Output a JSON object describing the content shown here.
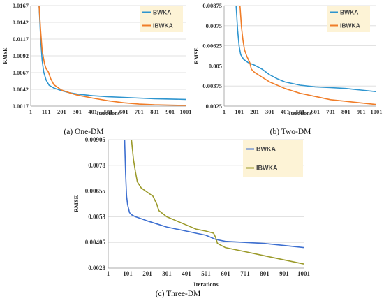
{
  "colors": {
    "bwka": "#2e95cf",
    "ibwka": "#f07d28",
    "ibwka_c": "#9b9a2a",
    "bwka_c": "#3d6fd0",
    "legend_bg": "#fdf3d6",
    "grid": "#d9d9d9"
  },
  "chart_data": [
    {
      "type": "line",
      "caption": "(a) One-DM",
      "xlabel": "Iterations",
      "ylabel": "RMSE",
      "xlim": [
        1,
        1001
      ],
      "ylim": [
        0.0017,
        0.0167
      ],
      "x_ticks": [
        "1",
        "101",
        "201",
        "301",
        "401",
        "501",
        "601",
        "701",
        "801",
        "901",
        "1001"
      ],
      "y_ticks": [
        "0.0167",
        "0.0142",
        "0.0117",
        "0.0092",
        "0.0067",
        "0.0042",
        "0.0017"
      ],
      "legend": {
        "placement": "top-right",
        "entries": [
          "BWKA",
          "IBWKA"
        ]
      },
      "grid": true,
      "series": [
        {
          "name": "BWKA",
          "color": "#2e95cf",
          "x": [
            55,
            65,
            75,
            85,
            100,
            120,
            150,
            200,
            250,
            300,
            400,
            500,
            600,
            700,
            800,
            900,
            1001
          ],
          "y": [
            0.0167,
            0.0118,
            0.0085,
            0.0068,
            0.0056,
            0.0048,
            0.0044,
            0.004,
            0.0037,
            0.0035,
            0.00325,
            0.0031,
            0.003,
            0.0029,
            0.0028,
            0.00275,
            0.0027
          ]
        },
        {
          "name": "IBWKA",
          "color": "#f07d28",
          "x": [
            55,
            65,
            75,
            90,
            100,
            115,
            130,
            150,
            200,
            250,
            300,
            400,
            500,
            600,
            700,
            800,
            900,
            1001
          ],
          "y": [
            0.0167,
            0.013,
            0.01,
            0.008,
            0.0073,
            0.0068,
            0.0058,
            0.0049,
            0.0041,
            0.0037,
            0.00335,
            0.0029,
            0.0025,
            0.0022,
            0.002,
            0.0019,
            0.00185,
            0.0018
          ]
        }
      ]
    },
    {
      "type": "line",
      "caption": "(b) Two-DM",
      "xlabel": "Iterations",
      "ylabel": "RMSE",
      "xlim": [
        1,
        1001
      ],
      "ylim": [
        0.0025,
        0.00875
      ],
      "x_ticks": [
        "1",
        "101",
        "201",
        "301",
        "401",
        "501",
        "601",
        "701",
        "801",
        "901",
        "1001"
      ],
      "y_ticks": [
        "0.00875",
        "0.0075",
        "0.00625",
        "0.005",
        "0.00375",
        "0.0025"
      ],
      "legend": {
        "placement": "top-right",
        "entries": [
          "BWKA",
          "IBWKA"
        ]
      },
      "grid": true,
      "series": [
        {
          "name": "BWKA",
          "color": "#2e95cf",
          "x": [
            80,
            90,
            100,
            110,
            130,
            160,
            200,
            250,
            300,
            350,
            400,
            500,
            600,
            700,
            800,
            900,
            1001
          ],
          "y": [
            0.00875,
            0.0072,
            0.0062,
            0.0057,
            0.0054,
            0.0052,
            0.00505,
            0.0048,
            0.00445,
            0.0042,
            0.004,
            0.0038,
            0.0037,
            0.00365,
            0.0036,
            0.0035,
            0.0034
          ]
        },
        {
          "name": "IBWKA",
          "color": "#f07d28",
          "x": [
            105,
            115,
            125,
            135,
            150,
            170,
            180,
            200,
            250,
            300,
            400,
            500,
            600,
            700,
            800,
            900,
            1001
          ],
          "y": [
            0.00875,
            0.0074,
            0.0066,
            0.006,
            0.0056,
            0.0052,
            0.0048,
            0.0046,
            0.0043,
            0.004,
            0.0036,
            0.0033,
            0.0031,
            0.0029,
            0.0028,
            0.0027,
            0.0026
          ]
        }
      ]
    },
    {
      "type": "line",
      "caption": "(c) Three-DM",
      "xlabel": "Iterations",
      "ylabel": "RMSE",
      "xlim": [
        1,
        1001
      ],
      "ylim": [
        0.0028,
        0.00905
      ],
      "x_ticks": [
        "1",
        "101",
        "201",
        "301",
        "401",
        "501",
        "601",
        "701",
        "801",
        "901",
        "1001"
      ],
      "y_ticks": [
        "0.00905",
        "0.0078",
        "0.00655",
        "0.0053",
        "0.00405",
        "0.0028"
      ],
      "legend": {
        "placement": "top-right",
        "entries": [
          "BWKA",
          "IBWKA"
        ]
      },
      "grid": true,
      "series": [
        {
          "name": "BWKA",
          "color": "#3d6fd0",
          "x": [
            85,
            90,
            95,
            100,
            110,
            120,
            140,
            170,
            200,
            250,
            300,
            350,
            400,
            450,
            500,
            550,
            600,
            700,
            800,
            900,
            1001
          ],
          "y": [
            0.00905,
            0.0074,
            0.0063,
            0.0059,
            0.0055,
            0.0054,
            0.0053,
            0.0052,
            0.0051,
            0.00495,
            0.0048,
            0.0047,
            0.0046,
            0.0045,
            0.0044,
            0.0042,
            0.0041,
            0.00405,
            0.004,
            0.0039,
            0.0038
          ]
        },
        {
          "name": "IBWKA",
          "color": "#9b9a2a",
          "x": [
            120,
            130,
            140,
            150,
            170,
            200,
            230,
            250,
            260,
            300,
            350,
            400,
            450,
            500,
            540,
            550,
            560,
            600,
            700,
            800,
            900,
            1001
          ],
          "y": [
            0.00905,
            0.0081,
            0.0075,
            0.007,
            0.0067,
            0.0065,
            0.0063,
            0.0059,
            0.0056,
            0.0053,
            0.0051,
            0.0049,
            0.0047,
            0.0046,
            0.0045,
            0.0043,
            0.004,
            0.0038,
            0.0036,
            0.0034,
            0.0032,
            0.003
          ]
        }
      ]
    }
  ]
}
